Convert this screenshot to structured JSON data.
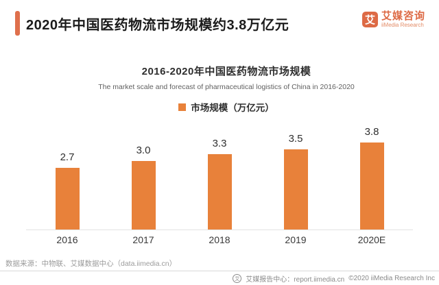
{
  "header": {
    "title": "2020年中国医药物流市场规模约3.8万亿元",
    "logo": {
      "symbol": "艾",
      "name_cn": "艾媒咨询",
      "name_en": "iiMedia Research"
    }
  },
  "chart": {
    "title": "2016-2020年中国医药物流市场规模",
    "subtitle": "The market scale and forecast of pharmaceutical logistics of China in 2016-2020",
    "legend": "市场规模（万亿元）"
  },
  "chart_data": {
    "type": "bar",
    "title": "2016-2020年中国医药物流市场规模",
    "subtitle": "The market scale and forecast of pharmaceutical logistics of China in 2016-2020",
    "categories": [
      "2016",
      "2017",
      "2018",
      "2019",
      "2020E"
    ],
    "values": [
      2.7,
      3.0,
      3.3,
      3.5,
      3.8
    ],
    "value_labels": [
      "2.7",
      "3.0",
      "3.3",
      "3.5",
      "3.8"
    ],
    "xlabel": "",
    "ylabel": "市场规模（万亿元）",
    "ylim": [
      0,
      4.2
    ],
    "grid": false,
    "legend_position": "top-center",
    "legend_entries": [
      "市场规模（万亿元）"
    ],
    "bar_color": "#E8813A"
  },
  "footer": {
    "source": "数据来源：中物联、艾媒数据中心（data.iimedia.cn）",
    "badge_symbol": "艾",
    "report_center": "艾媒报告中心：report.iimedia.cn",
    "copyright": "©2020  iiMedia Research Inc"
  },
  "colors": {
    "bar_orange": "#E8813A",
    "accent_orange": "#DF704C",
    "logo_orange": "#DD6A45",
    "title_dark": "#1b1b1b",
    "muted_gray": "#9b9b9b"
  }
}
